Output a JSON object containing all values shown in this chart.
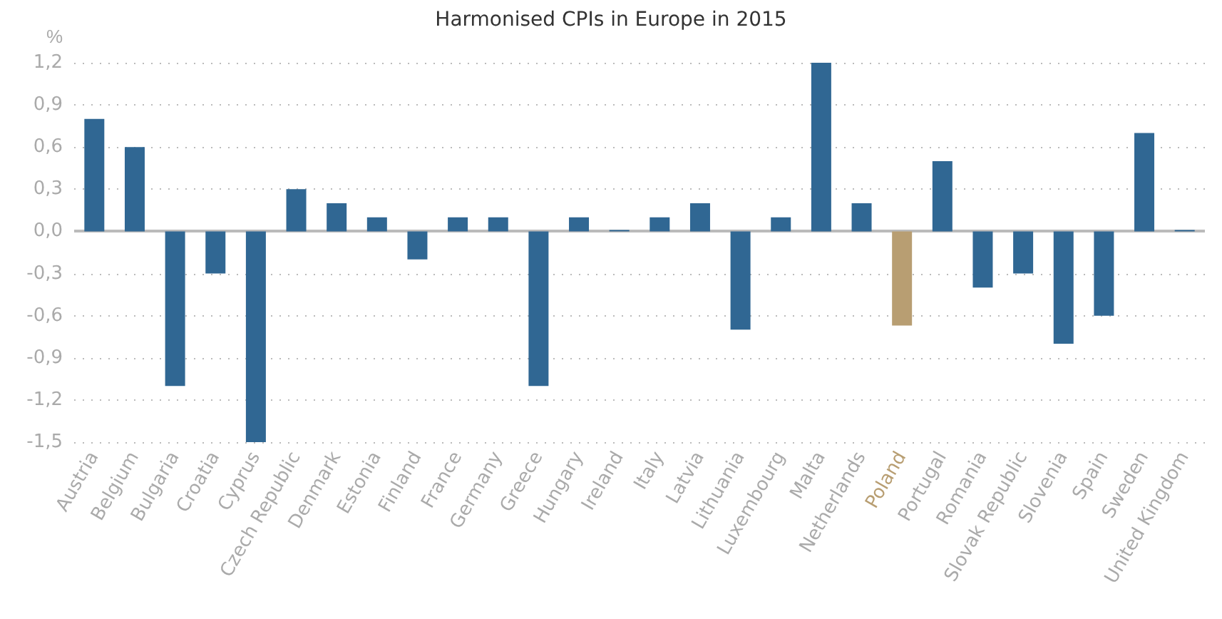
{
  "chart_data": {
    "type": "bar",
    "title": "Harmonised CPIs in Europe in 2015",
    "ylabel": "%",
    "categories": [
      "Austria",
      "Belgium",
      "Bulgaria",
      "Croatia",
      "Cyprus",
      "Czech Republic",
      "Denmark",
      "Estonia",
      "Finland",
      "France",
      "Germany",
      "Greece",
      "Hungary",
      "Ireland",
      "Italy",
      "Latvia",
      "Lithuania",
      "Luxembourg",
      "Malta",
      "Netherlands",
      "Poland",
      "Portugal",
      "Romania",
      "Slovak Republic",
      "Slovenia",
      "Spain",
      "Sweden",
      "United Kingdom"
    ],
    "values": [
      0.8,
      0.6,
      -1.1,
      -0.3,
      -1.5,
      0.3,
      0.2,
      0.1,
      -0.2,
      0.1,
      0.1,
      -1.1,
      0.1,
      0.01,
      0.1,
      0.2,
      -0.7,
      0.1,
      1.2,
      0.2,
      -0.67,
      0.5,
      -0.4,
      -0.3,
      -0.8,
      -0.6,
      0.7,
      0.01
    ],
    "colors": [
      "#306793",
      "#306793",
      "#306793",
      "#306793",
      "#306793",
      "#306793",
      "#306793",
      "#306793",
      "#306793",
      "#306793",
      "#306793",
      "#306793",
      "#306793",
      "#306793",
      "#306793",
      "#306793",
      "#306793",
      "#306793",
      "#306793",
      "#306793",
      "#b89e72",
      "#306793",
      "#306793",
      "#306793",
      "#306793",
      "#306793",
      "#306793",
      "#306793"
    ],
    "ylim": [
      -1.5,
      1.2
    ],
    "yticks": [
      {
        "value": -1.5,
        "label": "-1,5"
      },
      {
        "value": -1.2,
        "label": "-1,2"
      },
      {
        "value": -0.9,
        "label": "-0,9"
      },
      {
        "value": -0.6,
        "label": "-0,6"
      },
      {
        "value": -0.3,
        "label": "-0,3"
      },
      {
        "value": 0,
        "label": "0,0"
      },
      {
        "value": 0.3,
        "label": "0,3"
      },
      {
        "value": 0.6,
        "label": "0,6"
      },
      {
        "value": 0.9,
        "label": "0,9"
      },
      {
        "value": 1.2,
        "label": "1,2"
      }
    ],
    "grid": "y"
  }
}
